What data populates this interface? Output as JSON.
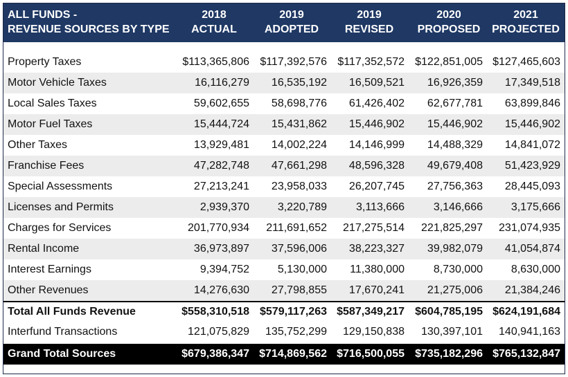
{
  "header": {
    "title_line1": "ALL FUNDS   -",
    "title_line2": "REVENUE SOURCES BY TYPE",
    "columns": [
      {
        "line1": "2018",
        "line2": "ACTUAL"
      },
      {
        "line1": "2019",
        "line2": "ADOPTED"
      },
      {
        "line1": "2019",
        "line2": "REVISED"
      },
      {
        "line1": "2020",
        "line2": "PROPOSED"
      },
      {
        "line1": "2021",
        "line2": "PROJECTED"
      }
    ]
  },
  "rows": [
    {
      "label": "Property Taxes",
      "values": [
        "$113,365,806",
        "$117,392,576",
        "$117,352,572",
        "$122,851,005",
        "$127,465,603"
      ]
    },
    {
      "label": "Motor Vehicle Taxes",
      "values": [
        "16,116,279",
        "16,535,192",
        "16,509,521",
        "16,926,359",
        "17,349,518"
      ]
    },
    {
      "label": "Local Sales Taxes",
      "values": [
        "59,602,655",
        "58,698,776",
        "61,426,402",
        "62,677,781",
        "63,899,846"
      ]
    },
    {
      "label": "Motor Fuel Taxes",
      "values": [
        "15,444,724",
        "15,431,862",
        "15,446,902",
        "15,446,902",
        "15,446,902"
      ]
    },
    {
      "label": "Other Taxes",
      "values": [
        "13,929,481",
        "14,002,224",
        "14,146,999",
        "14,488,329",
        "14,841,072"
      ]
    },
    {
      "label": "Franchise Fees",
      "values": [
        "47,282,748",
        "47,661,298",
        "48,596,328",
        "49,679,408",
        "51,423,929"
      ]
    },
    {
      "label": "Special Assessments",
      "values": [
        "27,213,241",
        "23,958,033",
        "26,207,745",
        "27,756,363",
        "28,445,093"
      ]
    },
    {
      "label": "Licenses and Permits",
      "values": [
        "2,939,370",
        "3,220,789",
        "3,113,666",
        "3,146,666",
        "3,175,666"
      ]
    },
    {
      "label": "Charges for Services",
      "values": [
        "201,770,934",
        "211,691,652",
        "217,275,514",
        "221,825,297",
        "231,074,935"
      ]
    },
    {
      "label": "Rental Income",
      "values": [
        "36,973,897",
        "37,596,006",
        "38,223,327",
        "39,982,079",
        "41,054,874"
      ]
    },
    {
      "label": "Interest Earnings",
      "values": [
        "9,394,752",
        "5,130,000",
        "11,380,000",
        "8,730,000",
        "8,630,000"
      ]
    },
    {
      "label": "Other Revenues",
      "values": [
        "14,276,630",
        "27,798,855",
        "17,670,241",
        "21,275,006",
        "21,384,246"
      ]
    }
  ],
  "total": {
    "label": "Total All Funds Revenue",
    "values": [
      "$558,310,518",
      "$579,117,263",
      "$587,349,217",
      "$604,785,195",
      "$624,191,684"
    ]
  },
  "interfund": {
    "label": "Interfund Transactions",
    "values": [
      "121,075,829",
      "135,752,299",
      "129,150,838",
      "130,397,101",
      "140,941,163"
    ]
  },
  "grand": {
    "label": "Grand Total Sources",
    "values": [
      "$679,386,347",
      "$714,869,562",
      "$716,500,055",
      "$735,182,296",
      "$765,132,847"
    ]
  },
  "colors": {
    "header_bg": "#1f3864",
    "shade_bg": "#ececec",
    "grand_bg": "#000000"
  }
}
